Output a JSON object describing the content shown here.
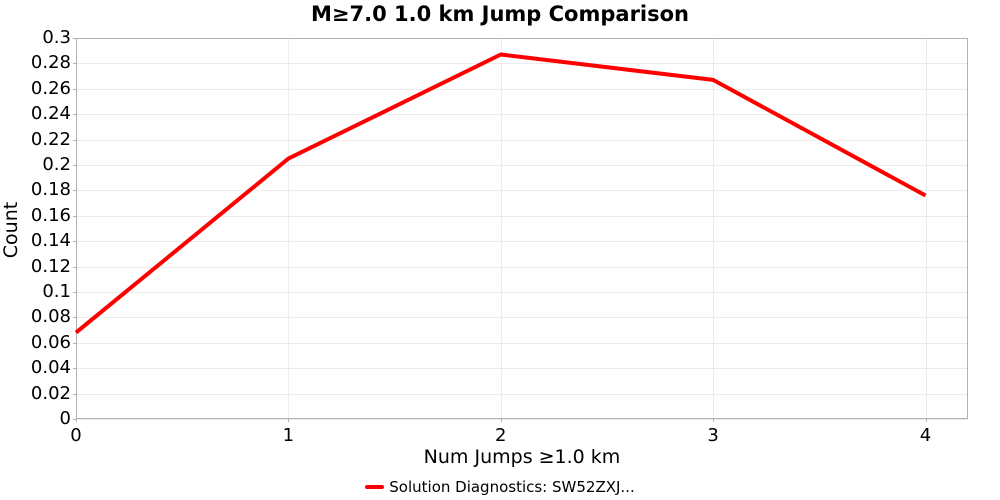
{
  "chart_data": {
    "type": "line",
    "title": "M≥7.0 1.0 km Jump Comparison",
    "xlabel": "Num Jumps ≥1.0 km",
    "ylabel": "Count",
    "x": [
      0,
      1,
      2,
      3,
      4
    ],
    "series": [
      {
        "name": "Solution Diagnostics: SW52ZXJ...",
        "color": "#ff0000",
        "values": [
          0.068,
          0.205,
          0.287,
          0.267,
          0.176
        ]
      }
    ],
    "xlim": [
      0,
      4.2
    ],
    "ylim": [
      0,
      0.3
    ],
    "x_ticks": [
      {
        "value": 0,
        "label": "0"
      },
      {
        "value": 1,
        "label": "1"
      },
      {
        "value": 2,
        "label": "2"
      },
      {
        "value": 3,
        "label": "3"
      },
      {
        "value": 4,
        "label": "4"
      }
    ],
    "y_ticks": [
      {
        "value": 0,
        "label": "0"
      },
      {
        "value": 0.02,
        "label": "0.02"
      },
      {
        "value": 0.04,
        "label": "0.04"
      },
      {
        "value": 0.06,
        "label": "0.06"
      },
      {
        "value": 0.08,
        "label": "0.08"
      },
      {
        "value": 0.1,
        "label": "0.1"
      },
      {
        "value": 0.12,
        "label": "0.12"
      },
      {
        "value": 0.14,
        "label": "0.14"
      },
      {
        "value": 0.16,
        "label": "0.16"
      },
      {
        "value": 0.18,
        "label": "0.18"
      },
      {
        "value": 0.2,
        "label": "0.2"
      },
      {
        "value": 0.22,
        "label": "0.22"
      },
      {
        "value": 0.24,
        "label": "0.24"
      },
      {
        "value": 0.26,
        "label": "0.26"
      },
      {
        "value": 0.28,
        "label": "0.28"
      },
      {
        "value": 0.3,
        "label": "0.3"
      }
    ],
    "grid": true,
    "legend_position": "bottom",
    "colors": {
      "line": "#ff0000",
      "grid": "#ececec",
      "border": "#b2b2b2",
      "text": "#000000",
      "background": "#ffffff"
    }
  }
}
